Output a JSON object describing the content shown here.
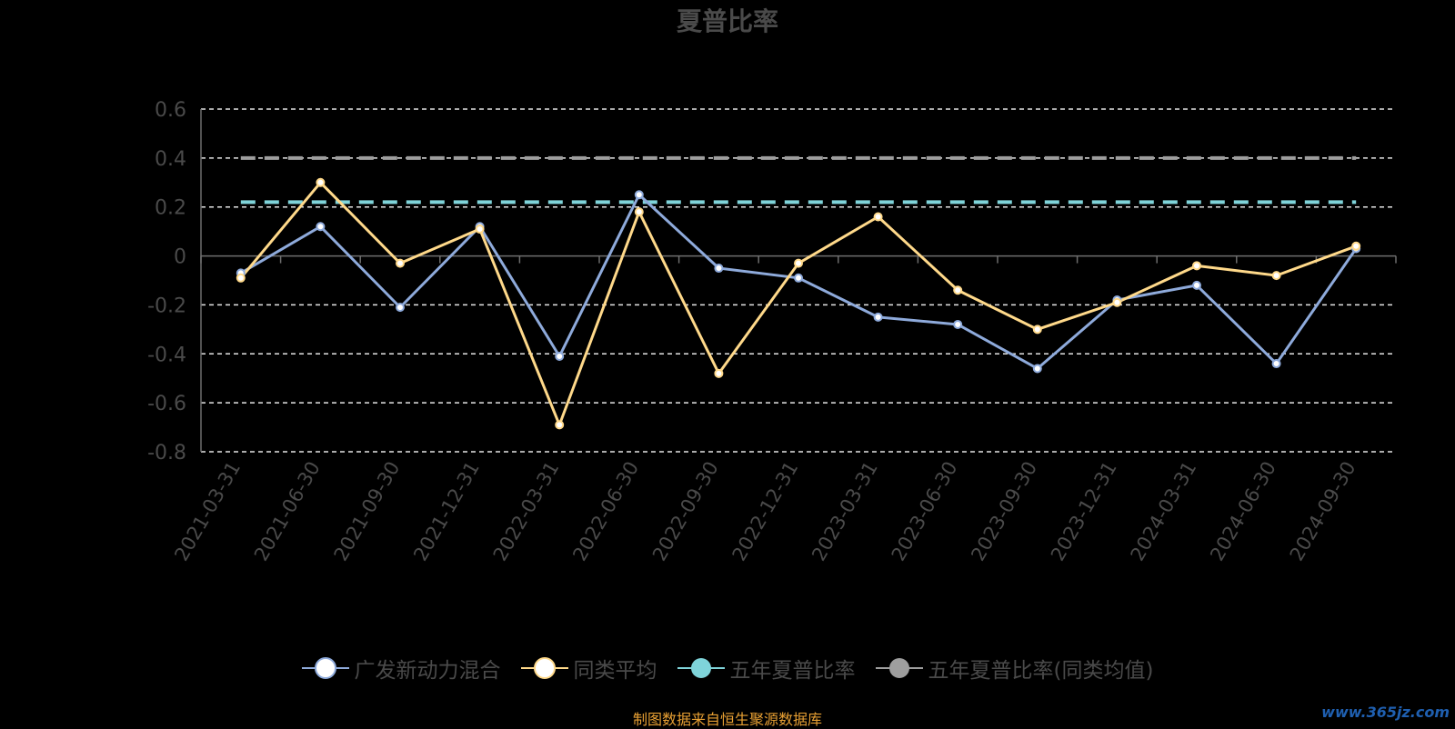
{
  "chart_data": {
    "type": "line",
    "title": "夏普比率",
    "categories": [
      "2021-03-31",
      "2021-06-30",
      "2021-09-30",
      "2021-12-31",
      "2022-03-31",
      "2022-06-30",
      "2022-09-30",
      "2022-12-31",
      "2023-03-31",
      "2023-06-30",
      "2023-09-30",
      "2023-12-31",
      "2024-03-31",
      "2024-06-30",
      "2024-09-30"
    ],
    "series": [
      {
        "name": "广发新动力混合",
        "color": "#8eaadb",
        "values": [
          -0.07,
          0.12,
          -0.21,
          0.12,
          -0.41,
          0.25,
          -0.05,
          -0.09,
          -0.25,
          -0.28,
          -0.46,
          -0.18,
          -0.12,
          -0.44,
          0.03
        ]
      },
      {
        "name": "同类平均",
        "color": "#ffd98a",
        "values": [
          -0.09,
          0.3,
          -0.03,
          0.11,
          -0.69,
          0.18,
          -0.48,
          -0.03,
          0.16,
          -0.14,
          -0.3,
          -0.19,
          -0.04,
          -0.08,
          0.04
        ]
      },
      {
        "name": "五年夏普比率",
        "color": "#7fd4da",
        "constant": 0.22
      },
      {
        "name": "五年夏普比率(同类均值)",
        "color": "#9e9e9e",
        "constant": 0.4
      }
    ],
    "yticks": [
      "0.6",
      "0.4",
      "0.2",
      "0",
      "-0.2",
      "-0.4",
      "-0.6",
      "-0.8"
    ],
    "ylim": [
      -0.8,
      0.6
    ],
    "grid": true,
    "legend_position": "bottom"
  },
  "source_note": "制图数据来自恒生聚源数据库",
  "watermark": "www.365jz.com"
}
